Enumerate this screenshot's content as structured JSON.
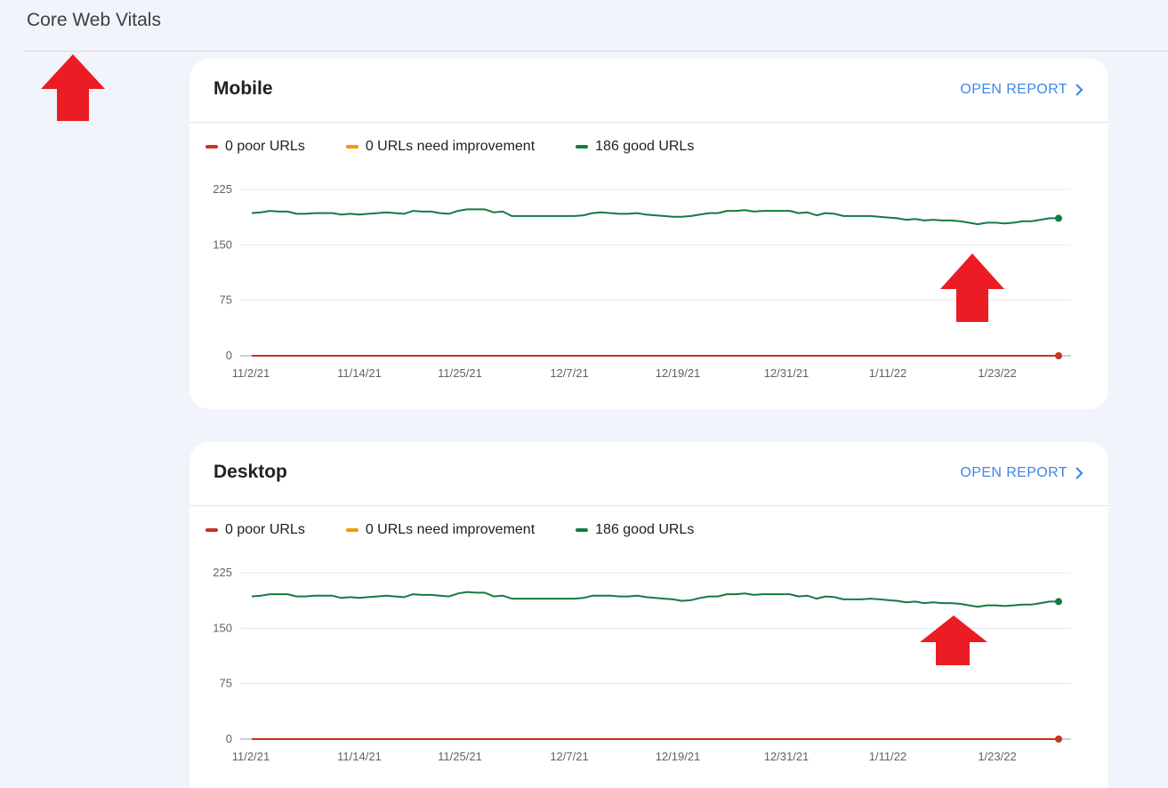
{
  "page": {
    "title": "Core Web Vitals"
  },
  "colors": {
    "poor": "#c5361b",
    "needs_improvement": "#f29900",
    "good": "#137b43",
    "link": "#3f87e8",
    "annotation_arrow": "#ec1c24"
  },
  "cards": [
    {
      "title": "Mobile",
      "open_report_label": "OPEN REPORT",
      "legend": {
        "poor": "0 poor URLs",
        "needs_improvement": "0 URLs need improvement",
        "good": "186 good URLs"
      }
    },
    {
      "title": "Desktop",
      "open_report_label": "OPEN REPORT",
      "legend": {
        "poor": "0 poor URLs",
        "needs_improvement": "0 URLs need improvement",
        "good": "186 good URLs"
      }
    }
  ],
  "chart_data": [
    {
      "type": "line",
      "ylim": [
        0,
        225
      ],
      "yticks": [
        "225",
        "150",
        "75",
        "0"
      ],
      "xticks": [
        "11/2/21",
        "11/14/21",
        "11/25/21",
        "12/7/21",
        "12/19/21",
        "12/31/21",
        "1/11/22",
        "1/23/22"
      ],
      "x_range": [
        "11/2/21",
        "1/31/22"
      ],
      "series": [
        {
          "name": "0 poor URLs",
          "color": "#c5361b",
          "values": [
            0,
            0,
            0,
            0,
            0,
            0,
            0,
            0,
            0,
            0,
            0,
            0,
            0,
            0,
            0,
            0,
            0,
            0,
            0,
            0,
            0,
            0,
            0,
            0,
            0,
            0,
            0,
            0,
            0,
            0,
            0,
            0,
            0,
            0,
            0,
            0,
            0,
            0,
            0,
            0,
            0,
            0,
            0,
            0,
            0,
            0,
            0,
            0,
            0,
            0,
            0,
            0,
            0,
            0,
            0,
            0,
            0,
            0,
            0,
            0,
            0,
            0,
            0,
            0,
            0,
            0,
            0,
            0,
            0,
            0,
            0,
            0,
            0,
            0,
            0,
            0,
            0,
            0,
            0,
            0,
            0,
            0,
            0,
            0,
            0,
            0,
            0,
            0,
            0,
            0,
            0
          ]
        },
        {
          "name": "186 good URLs",
          "color": "#137b43",
          "values": [
            193,
            194,
            196,
            195,
            195,
            192,
            192,
            193,
            193,
            193,
            191,
            192,
            191,
            192,
            193,
            194,
            193,
            192,
            196,
            195,
            195,
            193,
            192,
            196,
            198,
            198,
            198,
            194,
            195,
            189,
            189,
            189,
            189,
            189,
            189,
            189,
            189,
            190,
            193,
            194,
            193,
            192,
            192,
            193,
            191,
            190,
            189,
            188,
            188,
            189,
            191,
            193,
            193,
            196,
            196,
            197,
            195,
            196,
            196,
            196,
            196,
            193,
            194,
            190,
            193,
            192,
            189,
            189,
            189,
            189,
            188,
            187,
            186,
            184,
            185,
            183,
            184,
            183,
            183,
            182,
            180,
            178,
            180,
            180,
            179,
            180,
            182,
            182,
            184,
            186,
            186
          ]
        }
      ]
    },
    {
      "type": "line",
      "ylim": [
        0,
        225
      ],
      "yticks": [
        "225",
        "150",
        "75",
        "0"
      ],
      "xticks": [
        "11/2/21",
        "11/14/21",
        "11/25/21",
        "12/7/21",
        "12/19/21",
        "12/31/21",
        "1/11/22",
        "1/23/22"
      ],
      "x_range": [
        "11/2/21",
        "1/31/22"
      ],
      "series": [
        {
          "name": "0 poor URLs",
          "color": "#c5361b",
          "values": [
            0,
            0,
            0,
            0,
            0,
            0,
            0,
            0,
            0,
            0,
            0,
            0,
            0,
            0,
            0,
            0,
            0,
            0,
            0,
            0,
            0,
            0,
            0,
            0,
            0,
            0,
            0,
            0,
            0,
            0,
            0,
            0,
            0,
            0,
            0,
            0,
            0,
            0,
            0,
            0,
            0,
            0,
            0,
            0,
            0,
            0,
            0,
            0,
            0,
            0,
            0,
            0,
            0,
            0,
            0,
            0,
            0,
            0,
            0,
            0,
            0,
            0,
            0,
            0,
            0,
            0,
            0,
            0,
            0,
            0,
            0,
            0,
            0,
            0,
            0,
            0,
            0,
            0,
            0,
            0,
            0,
            0,
            0,
            0,
            0,
            0,
            0,
            0,
            0,
            0,
            0
          ]
        },
        {
          "name": "186 good URLs",
          "color": "#137b43",
          "values": [
            193,
            194,
            196,
            196,
            196,
            193,
            193,
            194,
            194,
            194,
            191,
            192,
            191,
            192,
            193,
            194,
            193,
            192,
            196,
            195,
            195,
            194,
            193,
            197,
            199,
            198,
            198,
            193,
            194,
            190,
            190,
            190,
            190,
            190,
            190,
            190,
            190,
            191,
            194,
            194,
            194,
            193,
            193,
            194,
            192,
            191,
            190,
            189,
            187,
            188,
            191,
            193,
            193,
            196,
            196,
            197,
            195,
            196,
            196,
            196,
            196,
            193,
            194,
            190,
            193,
            192,
            189,
            189,
            189,
            190,
            189,
            188,
            187,
            185,
            186,
            184,
            185,
            184,
            184,
            183,
            181,
            179,
            181,
            181,
            180,
            181,
            182,
            182,
            184,
            186,
            186
          ]
        }
      ]
    }
  ]
}
